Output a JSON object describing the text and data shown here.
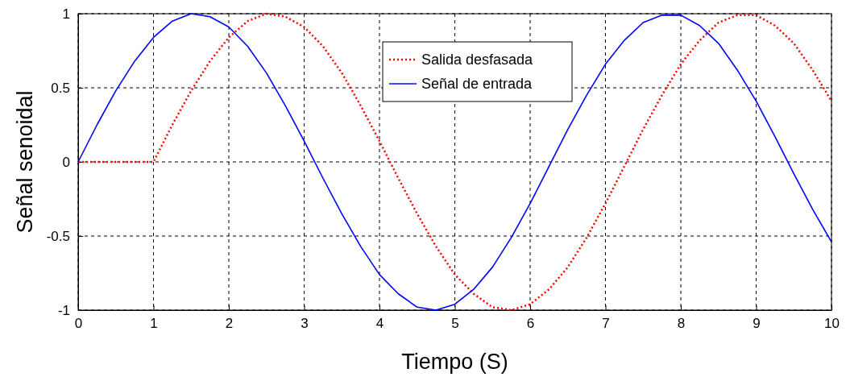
{
  "chart_data": {
    "type": "line",
    "xlabel": "Tiempo (S)",
    "ylabel": "Señal senoidal",
    "x": [
      0,
      0.25,
      0.5,
      0.75,
      1,
      1.25,
      1.5,
      1.75,
      2,
      2.25,
      2.5,
      2.75,
      3,
      3.25,
      3.5,
      3.75,
      4,
      4.25,
      4.5,
      4.75,
      5,
      5.25,
      5.5,
      5.75,
      6,
      6.25,
      6.5,
      6.75,
      7,
      7.25,
      7.5,
      7.75,
      8,
      8.25,
      8.5,
      8.75,
      9,
      9.25,
      9.5,
      9.75,
      10
    ],
    "series": [
      {
        "name": "Salida desfasada",
        "color": "#ff0000",
        "line_style": "dotted",
        "values": [
          0,
          0,
          0,
          0,
          0,
          0.25,
          0.48,
          0.68,
          0.84,
          0.95,
          1.0,
          0.98,
          0.91,
          0.78,
          0.6,
          0.38,
          0.14,
          -0.11,
          -0.35,
          -0.57,
          -0.76,
          -0.89,
          -0.98,
          -1.0,
          -0.96,
          -0.86,
          -0.71,
          -0.51,
          -0.28,
          -0.03,
          0.22,
          0.45,
          0.66,
          0.82,
          0.94,
          0.99,
          0.99,
          0.92,
          0.8,
          0.62,
          0.41
        ]
      },
      {
        "name": "Señal de entrada",
        "color": "#0000ff",
        "line_style": "solid",
        "values": [
          0,
          0.25,
          0.48,
          0.68,
          0.84,
          0.95,
          1.0,
          0.98,
          0.91,
          0.78,
          0.6,
          0.38,
          0.14,
          -0.11,
          -0.35,
          -0.57,
          -0.76,
          -0.89,
          -0.98,
          -1.0,
          -0.96,
          -0.86,
          -0.71,
          -0.51,
          -0.28,
          -0.03,
          0.22,
          0.45,
          0.66,
          0.82,
          0.94,
          0.99,
          0.99,
          0.92,
          0.8,
          0.62,
          0.41,
          0.17,
          -0.08,
          -0.32,
          -0.54
        ]
      }
    ],
    "xlim": [
      0,
      10
    ],
    "xticks": [
      0,
      1,
      2,
      3,
      4,
      5,
      6,
      7,
      8,
      9,
      10
    ],
    "ylim": [
      -1,
      1
    ],
    "yticks": [
      -1,
      -0.5,
      0,
      0.5,
      1
    ],
    "grid": true,
    "legend": "top",
    "marker": "none"
  }
}
